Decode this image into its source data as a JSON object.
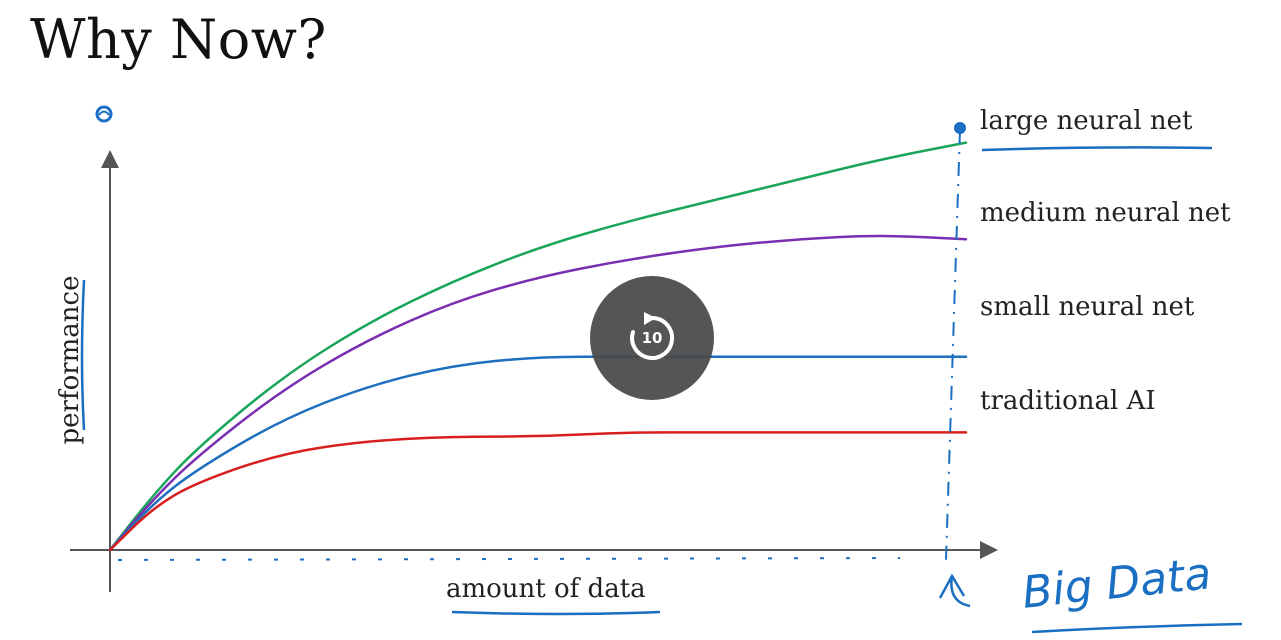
{
  "slide": {
    "title": "Why Now?"
  },
  "chart_data": {
    "type": "line",
    "xlabel": "amount of data",
    "ylabel": "performance",
    "x": [
      0,
      5,
      10,
      20,
      30,
      40,
      50,
      60,
      70,
      80,
      90,
      100
    ],
    "series": [
      {
        "name": "large neural net",
        "color": "#1aa55a",
        "values": [
          0,
          13,
          24,
          41,
          54,
          64,
          72,
          78,
          83,
          88,
          93,
          97
        ]
      },
      {
        "name": "medium neural net",
        "color": "#7a2fb0",
        "values": [
          0,
          12,
          22,
          38,
          50,
          59,
          65,
          69,
          72,
          74,
          75,
          74
        ]
      },
      {
        "name": "small neural net",
        "color": "#1f6fbf",
        "values": [
          0,
          11,
          19,
          31,
          39,
          44,
          46,
          46,
          46,
          46,
          46,
          46
        ]
      },
      {
        "name": "traditional AI",
        "color": "#d81f1f",
        "values": [
          0,
          10,
          16,
          23,
          26,
          27,
          27,
          28,
          28,
          28,
          28,
          28
        ]
      }
    ],
    "annotation": "Big Data",
    "annotation_color": "#1a6fc2"
  },
  "player": {
    "replay_icon": "replay-10-icon",
    "replay_seconds": "10"
  }
}
